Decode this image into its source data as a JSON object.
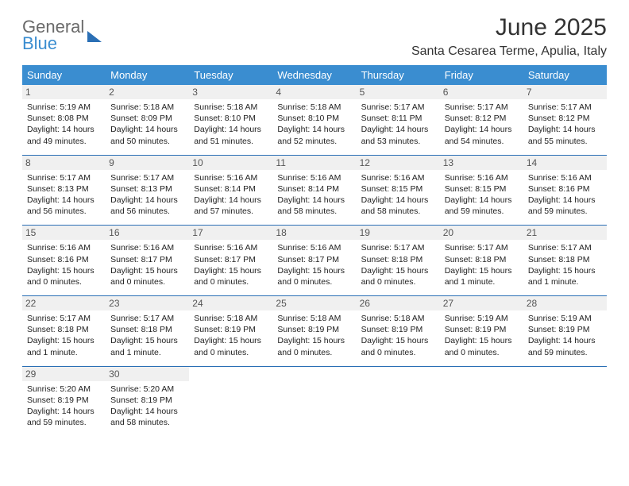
{
  "logo": {
    "line1": "General",
    "line2": "Blue"
  },
  "title": "June 2025",
  "location": "Santa Cesarea Terme, Apulia, Italy",
  "colors": {
    "header_bg": "#3a8dd0",
    "row_border": "#2a6fb5",
    "daynum_bg": "#f0f0f0",
    "text": "#222222",
    "logo_gray": "#6a6a6a",
    "logo_blue": "#3a8dd0"
  },
  "day_labels": [
    "Sunday",
    "Monday",
    "Tuesday",
    "Wednesday",
    "Thursday",
    "Friday",
    "Saturday"
  ],
  "weeks": [
    [
      {
        "n": "1",
        "sr": "5:19 AM",
        "ss": "8:08 PM",
        "dl": "14 hours and 49 minutes."
      },
      {
        "n": "2",
        "sr": "5:18 AM",
        "ss": "8:09 PM",
        "dl": "14 hours and 50 minutes."
      },
      {
        "n": "3",
        "sr": "5:18 AM",
        "ss": "8:10 PM",
        "dl": "14 hours and 51 minutes."
      },
      {
        "n": "4",
        "sr": "5:18 AM",
        "ss": "8:10 PM",
        "dl": "14 hours and 52 minutes."
      },
      {
        "n": "5",
        "sr": "5:17 AM",
        "ss": "8:11 PM",
        "dl": "14 hours and 53 minutes."
      },
      {
        "n": "6",
        "sr": "5:17 AM",
        "ss": "8:12 PM",
        "dl": "14 hours and 54 minutes."
      },
      {
        "n": "7",
        "sr": "5:17 AM",
        "ss": "8:12 PM",
        "dl": "14 hours and 55 minutes."
      }
    ],
    [
      {
        "n": "8",
        "sr": "5:17 AM",
        "ss": "8:13 PM",
        "dl": "14 hours and 56 minutes."
      },
      {
        "n": "9",
        "sr": "5:17 AM",
        "ss": "8:13 PM",
        "dl": "14 hours and 56 minutes."
      },
      {
        "n": "10",
        "sr": "5:16 AM",
        "ss": "8:14 PM",
        "dl": "14 hours and 57 minutes."
      },
      {
        "n": "11",
        "sr": "5:16 AM",
        "ss": "8:14 PM",
        "dl": "14 hours and 58 minutes."
      },
      {
        "n": "12",
        "sr": "5:16 AM",
        "ss": "8:15 PM",
        "dl": "14 hours and 58 minutes."
      },
      {
        "n": "13",
        "sr": "5:16 AM",
        "ss": "8:15 PM",
        "dl": "14 hours and 59 minutes."
      },
      {
        "n": "14",
        "sr": "5:16 AM",
        "ss": "8:16 PM",
        "dl": "14 hours and 59 minutes."
      }
    ],
    [
      {
        "n": "15",
        "sr": "5:16 AM",
        "ss": "8:16 PM",
        "dl": "15 hours and 0 minutes."
      },
      {
        "n": "16",
        "sr": "5:16 AM",
        "ss": "8:17 PM",
        "dl": "15 hours and 0 minutes."
      },
      {
        "n": "17",
        "sr": "5:16 AM",
        "ss": "8:17 PM",
        "dl": "15 hours and 0 minutes."
      },
      {
        "n": "18",
        "sr": "5:16 AM",
        "ss": "8:17 PM",
        "dl": "15 hours and 0 minutes."
      },
      {
        "n": "19",
        "sr": "5:17 AM",
        "ss": "8:18 PM",
        "dl": "15 hours and 0 minutes."
      },
      {
        "n": "20",
        "sr": "5:17 AM",
        "ss": "8:18 PM",
        "dl": "15 hours and 1 minute."
      },
      {
        "n": "21",
        "sr": "5:17 AM",
        "ss": "8:18 PM",
        "dl": "15 hours and 1 minute."
      }
    ],
    [
      {
        "n": "22",
        "sr": "5:17 AM",
        "ss": "8:18 PM",
        "dl": "15 hours and 1 minute."
      },
      {
        "n": "23",
        "sr": "5:17 AM",
        "ss": "8:18 PM",
        "dl": "15 hours and 1 minute."
      },
      {
        "n": "24",
        "sr": "5:18 AM",
        "ss": "8:19 PM",
        "dl": "15 hours and 0 minutes."
      },
      {
        "n": "25",
        "sr": "5:18 AM",
        "ss": "8:19 PM",
        "dl": "15 hours and 0 minutes."
      },
      {
        "n": "26",
        "sr": "5:18 AM",
        "ss": "8:19 PM",
        "dl": "15 hours and 0 minutes."
      },
      {
        "n": "27",
        "sr": "5:19 AM",
        "ss": "8:19 PM",
        "dl": "15 hours and 0 minutes."
      },
      {
        "n": "28",
        "sr": "5:19 AM",
        "ss": "8:19 PM",
        "dl": "14 hours and 59 minutes."
      }
    ],
    [
      {
        "n": "29",
        "sr": "5:20 AM",
        "ss": "8:19 PM",
        "dl": "14 hours and 59 minutes."
      },
      {
        "n": "30",
        "sr": "5:20 AM",
        "ss": "8:19 PM",
        "dl": "14 hours and 58 minutes."
      },
      null,
      null,
      null,
      null,
      null
    ]
  ],
  "labels": {
    "sunrise": "Sunrise: ",
    "sunset": "Sunset: ",
    "daylight": "Daylight: "
  }
}
